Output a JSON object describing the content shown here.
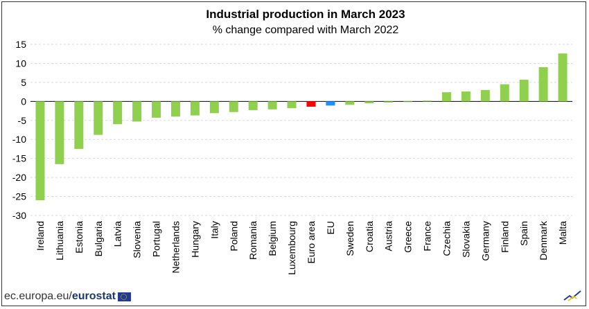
{
  "chart_data": {
    "type": "bar",
    "title": "Industrial production in March 2023",
    "subtitle": "% change compared with March 2022",
    "categories": [
      "Ireland",
      "Lithuania",
      "Estonia",
      "Bulgaria",
      "Latvia",
      "Slovenia",
      "Portugal",
      "Netherlands",
      "Hungary",
      "Italy",
      "Poland",
      "Romania",
      "Belgium",
      "Luxembourg",
      "Euro area",
      "EU",
      "Sweden",
      "Croatia",
      "Austria",
      "Greece",
      "France",
      "Czechia",
      "Slovakia",
      "Germany",
      "Finland",
      "Spain",
      "Denmark",
      "Malta"
    ],
    "values": [
      -26.0,
      -16.5,
      -12.5,
      -8.8,
      -6.0,
      -5.3,
      -4.3,
      -4.0,
      -3.7,
      -3.1,
      -2.8,
      -2.3,
      -2.1,
      -1.8,
      -1.4,
      -1.1,
      -0.9,
      -0.5,
      -0.3,
      -0.1,
      0.2,
      2.4,
      2.6,
      3.0,
      4.5,
      5.7,
      9.0,
      12.6
    ],
    "colors": {
      "default": "#8fd14f",
      "Euro area": "#ff0000",
      "EU": "#1e90ff"
    },
    "ylim": [
      -30,
      15
    ],
    "yticks": [
      15,
      10,
      5,
      0,
      -5,
      -10,
      -15,
      -20,
      -25,
      -30
    ],
    "grid": true,
    "xlabel": "",
    "ylabel": ""
  },
  "footer": {
    "site": "ec.europa.eu/",
    "brand": "eurostat"
  }
}
